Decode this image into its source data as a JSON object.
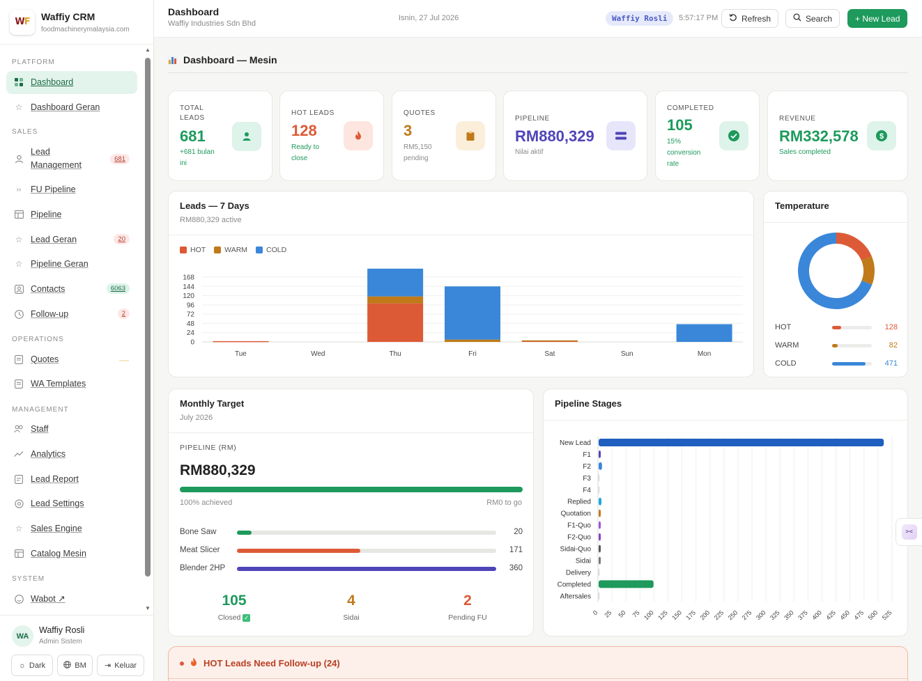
{
  "app": {
    "name": "Waffiy CRM",
    "domain": "foodmachinerymalaysia.com"
  },
  "sidebar": {
    "sections": {
      "platform": "PLATFORM",
      "sales": "SALES",
      "operations": "OPERATIONS",
      "management": "MANAGEMENT",
      "system": "SYSTEM"
    },
    "items": [
      {
        "label": "Dashboard",
        "icon": "grid-icon"
      },
      {
        "label": "Dashboard Geran",
        "icon": "star-icon"
      },
      {
        "label": "Lead Management",
        "line1": "Lead",
        "line2": "Management",
        "badge": "681",
        "icon": "person-icon"
      },
      {
        "label": "FU Pipeline",
        "icon": "chevrons-icon"
      },
      {
        "label": "Pipeline",
        "icon": "table-icon"
      },
      {
        "label": "Lead Geran",
        "badge": "20",
        "icon": "star-icon"
      },
      {
        "label": "Pipeline Geran",
        "icon": "star-icon"
      },
      {
        "label": "Contacts",
        "badge": "6063",
        "icon": "contact-icon"
      },
      {
        "label": "Follow-up",
        "badge": "2",
        "icon": "clock-icon"
      },
      {
        "label": "Quotes",
        "icon": "doc-icon"
      },
      {
        "label": "WA Templates",
        "icon": "doc-icon"
      },
      {
        "label": "Staff",
        "icon": "people-icon"
      },
      {
        "label": "Analytics",
        "icon": "trend-icon"
      },
      {
        "label": "Lead Report",
        "icon": "report-icon"
      },
      {
        "label": "Lead Settings",
        "icon": "settings-icon"
      },
      {
        "label": "Sales Engine",
        "icon": "star-icon"
      },
      {
        "label": "Catalog Mesin",
        "icon": "table-icon"
      },
      {
        "label": "Wabot ↗",
        "icon": "smile-icon"
      }
    ]
  },
  "user": {
    "initials": "WA",
    "name": "Waffiy Rosli",
    "role": "Admin Sistem",
    "buttons": {
      "dark": "Dark",
      "lang": "BM",
      "logout": "Keluar"
    }
  },
  "topbar": {
    "title": "Dashboard",
    "company": "Waffiy Industries Sdn Bhd",
    "date": "Isnin, 27 Jul 2026",
    "user_pill": "Waffiy Rosli",
    "time": "5:57:17 PM",
    "refresh": "Refresh",
    "search": "Search",
    "new_lead": "+ New Lead"
  },
  "page": {
    "title": "Dashboard — Mesin"
  },
  "kpis": {
    "total": {
      "l1": "TOTAL",
      "l2": "LEADS",
      "value": "681",
      "s1": "+681 bulan",
      "s2": "ini"
    },
    "hot": {
      "label": "HOT LEADS",
      "value": "128",
      "s1": "Ready to",
      "s2": "close"
    },
    "quotes": {
      "label": "QUOTES",
      "value": "3",
      "s1": "RM5,150",
      "s2": "pending"
    },
    "pipeline": {
      "label": "PIPELINE",
      "value": "RM880,329",
      "sub": "Nilai aktif"
    },
    "completed": {
      "label": "COMPLETED",
      "value": "105",
      "s1": "15%",
      "s2": "conversion",
      "s3": "rate"
    },
    "revenue": {
      "label": "REVENUE",
      "value": "RM332,578",
      "sub": "Sales completed"
    }
  },
  "leads7": {
    "title": "Leads — 7 Days",
    "sub": "RM880,329 active",
    "legend": [
      "HOT",
      "WARM",
      "COLD"
    ]
  },
  "temperature": {
    "title": "Temperature",
    "rows": [
      {
        "label": "HOT",
        "value": "128",
        "n": 128,
        "color": "#dd5a36"
      },
      {
        "label": "WARM",
        "value": "82",
        "n": 82,
        "color": "#c07a1a"
      },
      {
        "label": "COLD",
        "value": "471",
        "n": 471,
        "color": "#3a87d9"
      }
    ]
  },
  "monthly": {
    "title": "Monthly Target",
    "month": "July 2026",
    "pipeline_label": "PIPELINE (RM)",
    "value": "RM880,329",
    "achieved": "100% achieved",
    "to_go": "RM0 to go",
    "progress": 1.0,
    "products": [
      {
        "name": "Bone Saw",
        "value": "20",
        "n": 20,
        "color": "#1d9a5c"
      },
      {
        "name": "Meat Slicer",
        "value": "171",
        "n": 171,
        "color": "#dd5a36"
      },
      {
        "name": "Blender 2HP",
        "value": "360",
        "n": 360,
        "color": "#4f44b8"
      }
    ],
    "stats": [
      {
        "value": "105",
        "label": "Closed",
        "color": "#1d9a5c",
        "check": "✓"
      },
      {
        "value": "4",
        "label": "Sidai",
        "color": "#c07a1a"
      },
      {
        "value": "2",
        "label": "Pending FU",
        "color": "#dd5a36"
      }
    ]
  },
  "pipeline_stages": {
    "title": "Pipeline Stages"
  },
  "alert": {
    "title": "HOT Leads Need Follow-up (24)"
  },
  "chart_data": [
    {
      "type": "bar",
      "title": "Leads — 7 Days",
      "categories": [
        "Tue",
        "Wed",
        "Thu",
        "Fri",
        "Sat",
        "Sun",
        "Mon"
      ],
      "stacked": true,
      "series": [
        {
          "name": "HOT",
          "values": [
            2,
            0,
            100,
            0,
            3,
            0,
            0
          ],
          "color": "#dd5a36"
        },
        {
          "name": "WARM",
          "values": [
            0,
            0,
            18,
            6,
            1,
            0,
            0
          ],
          "color": "#c07a1a"
        },
        {
          "name": "COLD",
          "values": [
            0,
            0,
            72,
            138,
            0,
            0,
            46
          ],
          "color": "#3a87d9"
        }
      ],
      "yticks": [
        0,
        24,
        48,
        72,
        96,
        120,
        144,
        168
      ],
      "ylim": [
        0,
        192
      ],
      "legend": "top-left",
      "grid": true
    },
    {
      "type": "pie",
      "title": "Temperature",
      "categories": [
        "HOT",
        "WARM",
        "COLD"
      ],
      "values": [
        128,
        82,
        471
      ],
      "donut": true
    },
    {
      "type": "bar",
      "title": "Pipeline Stages",
      "orientation": "horizontal",
      "categories": [
        "New Lead",
        "F1",
        "F2",
        "F3",
        "F4",
        "Replied",
        "Quotation",
        "F1-Quo",
        "F2-Quo",
        "Sidai-Quo",
        "Sidai",
        "Delivery",
        "Completed",
        "Aftersales"
      ],
      "values": [
        509,
        3,
        6,
        0,
        0,
        5,
        2,
        3,
        2,
        3,
        2,
        0,
        98,
        0
      ],
      "colors": [
        "#1f5fbf",
        "#4f44b8",
        "#3a87d9",
        "#9aa0a6",
        "#9aa0a6",
        "#1ca8e0",
        "#c07a1a",
        "#a052d6",
        "#8a3fc9",
        "#555555",
        "#777777",
        "#9aa0a6",
        "#1d9a5c",
        "#9aa0a6"
      ],
      "xticks": [
        0,
        25,
        50,
        75,
        100,
        125,
        150,
        175,
        200,
        225,
        250,
        275,
        300,
        325,
        350,
        375,
        400,
        425,
        450,
        475,
        500,
        525
      ],
      "xlim": [
        0,
        525
      ],
      "grid": true
    }
  ]
}
